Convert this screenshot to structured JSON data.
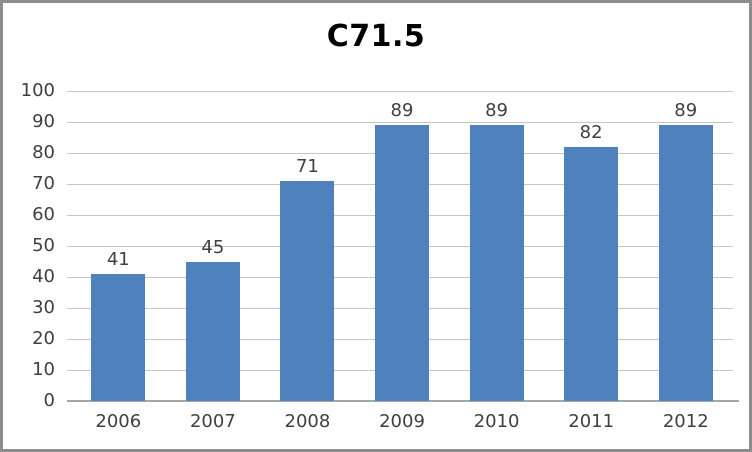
{
  "chart_data": {
    "type": "bar",
    "title": "C71.5",
    "categories": [
      "2006",
      "2007",
      "2008",
      "2009",
      "2010",
      "2011",
      "2012"
    ],
    "values": [
      41,
      45,
      71,
      89,
      89,
      82,
      89
    ],
    "xlabel": "",
    "ylabel": "",
    "ylim": [
      0,
      100
    ],
    "ytick_step": 10,
    "grid": true,
    "legend": "none",
    "data_labels_shown": true
  },
  "style": {
    "bar_color": "#4F81BD",
    "gridline_color": "#c6c6c6",
    "axis_line_color": "#a6a6a6",
    "text_color": "#404040",
    "title_color": "#000000",
    "frame_border_color": "#8c8c8c",
    "background_color": "#ffffff"
  }
}
